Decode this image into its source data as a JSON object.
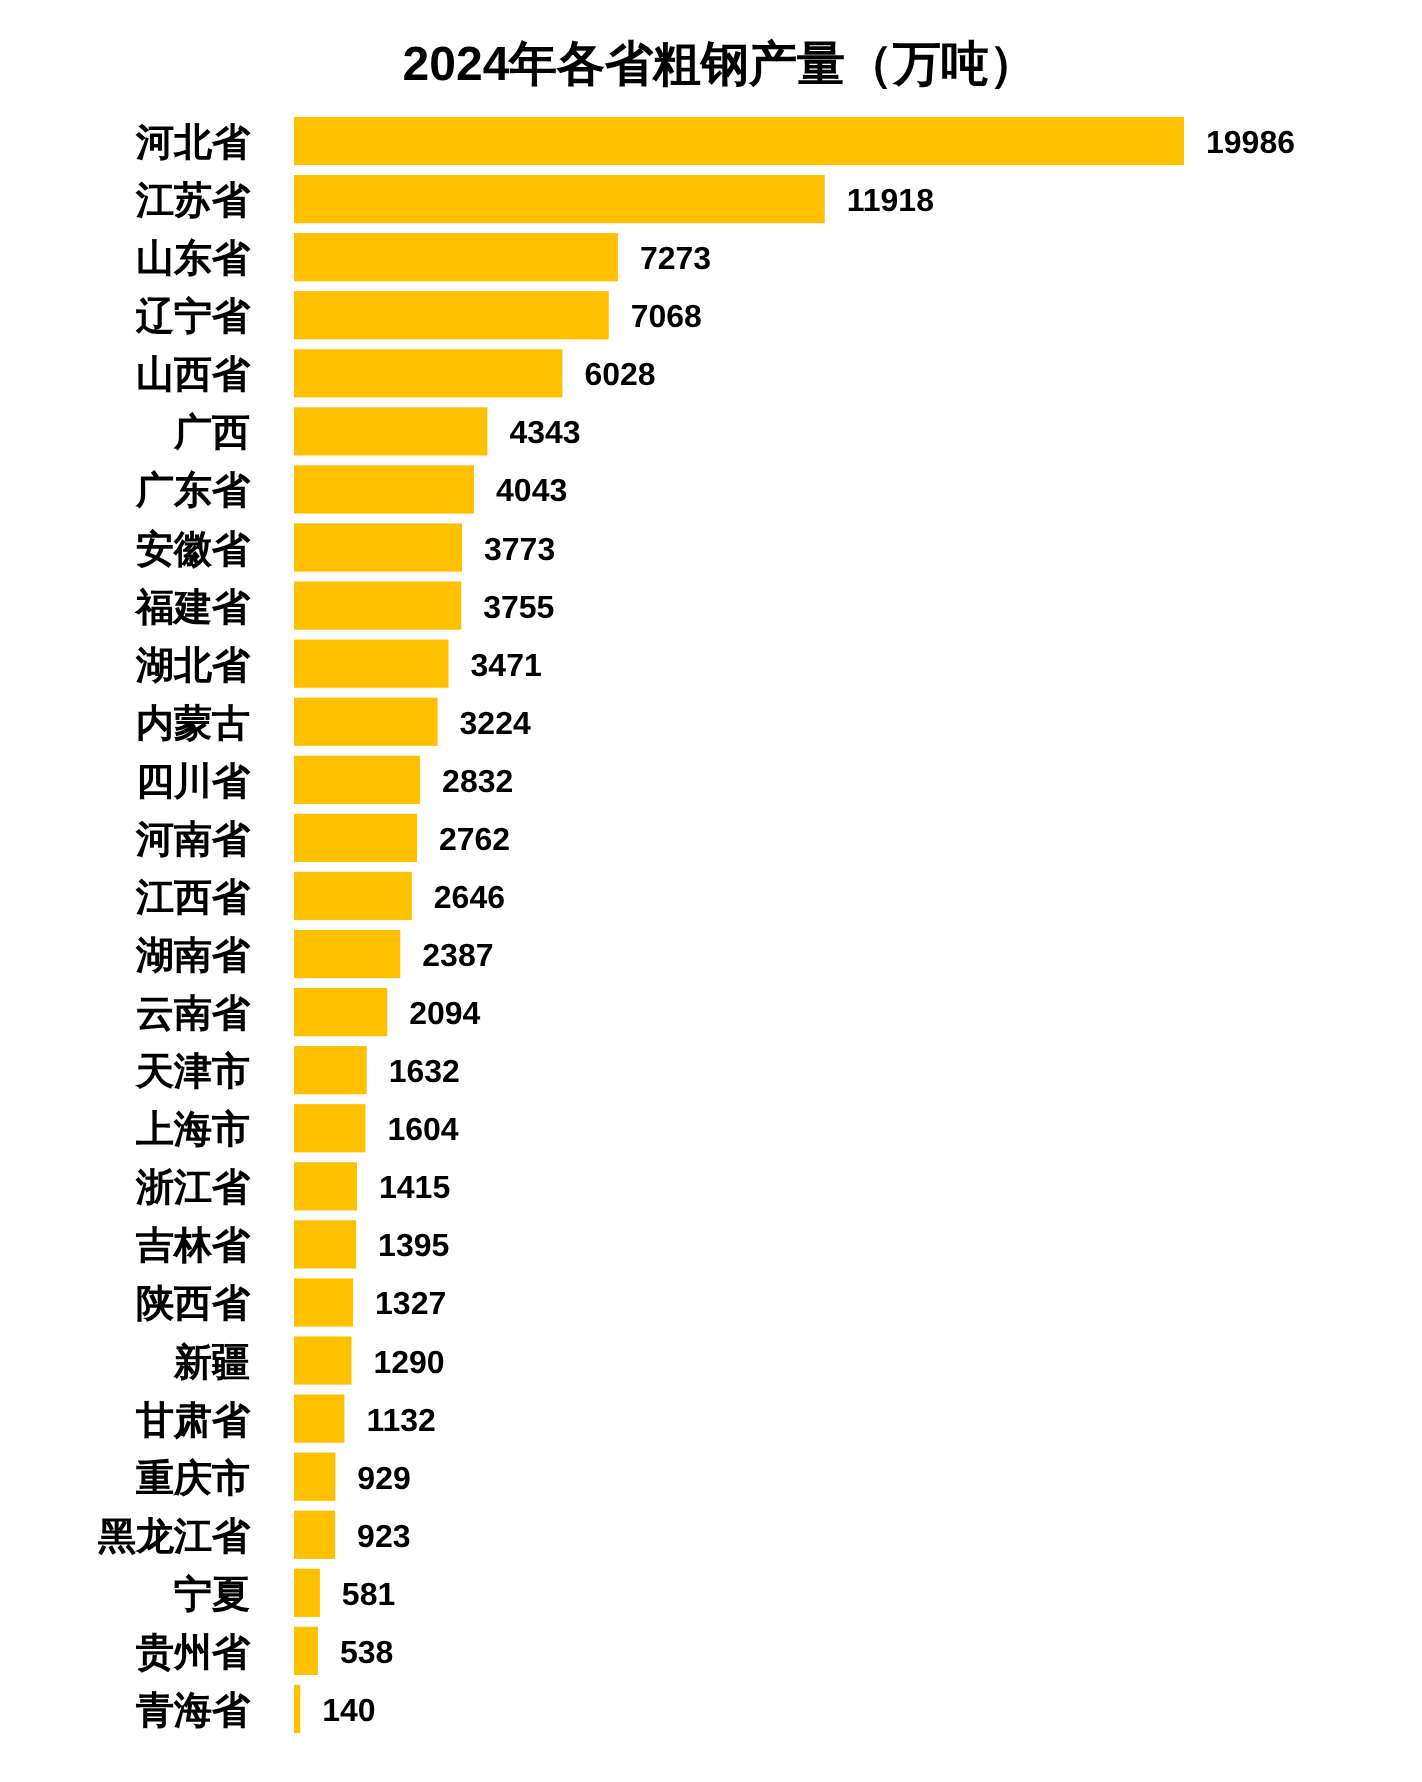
{
  "chart_data": {
    "type": "bar",
    "orientation": "horizontal",
    "title": "2024年各省粗钢产量（万吨）",
    "categories": [
      "河北省",
      "江苏省",
      "山东省",
      "辽宁省",
      "山西省",
      "广西",
      "广东省",
      "安徽省",
      "福建省",
      "湖北省",
      "内蒙古",
      "四川省",
      "河南省",
      "江西省",
      "湖南省",
      "云南省",
      "天津市",
      "上海市",
      "浙江省",
      "吉林省",
      "陕西省",
      "新疆",
      "甘肃省",
      "重庆市",
      "黑龙江省",
      "宁夏",
      "贵州省",
      "青海省"
    ],
    "values": [
      19986,
      11918,
      7273,
      7068,
      6028,
      4343,
      4043,
      3773,
      3755,
      3471,
      3224,
      2832,
      2762,
      2646,
      2387,
      2094,
      1632,
      1604,
      1415,
      1395,
      1327,
      1290,
      1132,
      929,
      923,
      581,
      538,
      140
    ],
    "color": "#ffc000",
    "data_labels": true
  }
}
